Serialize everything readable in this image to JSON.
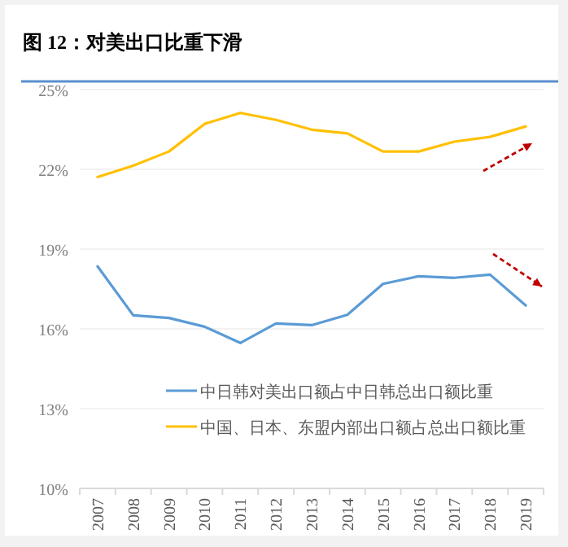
{
  "chart_data": {
    "type": "line",
    "title": "图 12：对美出口比重下滑",
    "categories": [
      "2007",
      "2008",
      "2009",
      "2010",
      "2011",
      "2012",
      "2013",
      "2014",
      "2015",
      "2016",
      "2017",
      "2018",
      "2019"
    ],
    "series": [
      {
        "name": "中日韩对美出口额占中日韩总出口额比重",
        "color": "#5b9bd5",
        "values": [
          18.35,
          16.51,
          16.41,
          16.08,
          15.47,
          16.2,
          16.14,
          16.53,
          17.69,
          17.98,
          17.92,
          18.04,
          16.88
        ]
      },
      {
        "name": "中国、日本、东盟内部出口额占总出口额比重",
        "color": "#ffc000",
        "values": [
          21.71,
          22.14,
          22.67,
          23.71,
          24.12,
          23.86,
          23.49,
          23.35,
          22.67,
          22.67,
          23.04,
          23.22,
          23.61
        ]
      }
    ],
    "ylim": [
      10,
      25
    ],
    "yticks": [
      {
        "value": 10,
        "label": "10%"
      },
      {
        "value": 13,
        "label": "13%"
      },
      {
        "value": 16,
        "label": "16%"
      },
      {
        "value": 19,
        "label": "19%"
      },
      {
        "value": 22,
        "label": "22%"
      },
      {
        "value": 25,
        "label": "25%"
      }
    ],
    "grid": "y",
    "legend": "bottom right",
    "marker": "none",
    "line_style": "solid"
  }
}
